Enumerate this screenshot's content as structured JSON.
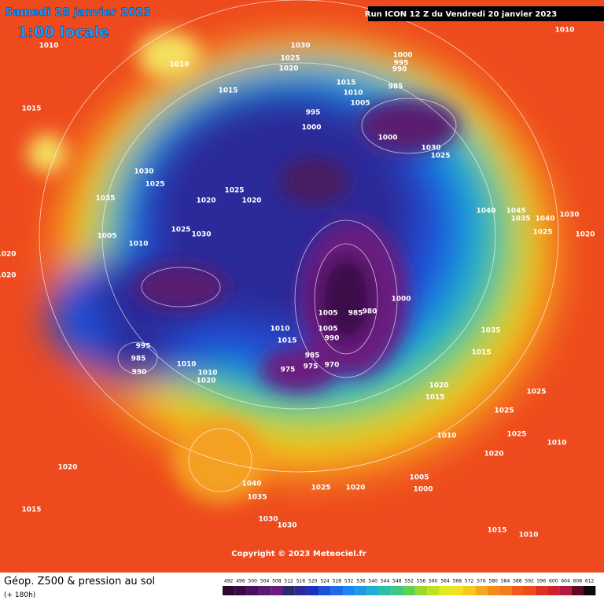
{
  "header": {
    "date": "Samedi 28 janvier 2023",
    "time": "1:00 locale",
    "run": "Run ICON 12 Z du Vendredi 20 janvier 2023"
  },
  "copyright": "Copyright © 2023 Meteociel.fr",
  "footer": {
    "title": "Géop. Z500 & pression au sol",
    "subtitle": "(+ 180h)"
  },
  "scale": {
    "labels": [
      "492",
      "496",
      "500",
      "504",
      "508",
      "512",
      "516",
      "520",
      "524",
      "528",
      "532",
      "536",
      "540",
      "544",
      "548",
      "552",
      "556",
      "560",
      "564",
      "568",
      "572",
      "576",
      "580",
      "584",
      "588",
      "592",
      "596",
      "600",
      "604",
      "608",
      "612"
    ]
  },
  "isobars": [
    "1010",
    "1030",
    "1025",
    "1020",
    "1010",
    "1015",
    "1000",
    "995",
    "990",
    "985",
    "1015",
    "1010",
    "1005",
    "995",
    "1000",
    "1000",
    "1030",
    "1025",
    "1030",
    "1025",
    "1035",
    "1020",
    "1025",
    "1030",
    "1025",
    "1005",
    "1010",
    "1020",
    "1040",
    "1045",
    "1040",
    "1035",
    "1030",
    "1025",
    "1020",
    "1020",
    "995",
    "985",
    "990",
    "1015",
    "1010",
    "1020",
    "1035",
    "1015",
    "1005",
    "985",
    "980",
    "1000",
    "1010",
    "1005",
    "990",
    "985",
    "975",
    "970",
    "975",
    "1020",
    "1015",
    "1010",
    "1005",
    "1000",
    "1040",
    "1035",
    "1030",
    "1030",
    "1025",
    "1020",
    "1015",
    "1015",
    "1010",
    "1025",
    "1025",
    "1025",
    "1020",
    "1015",
    "1010",
    "1010",
    "1020",
    "1020",
    "1010"
  ]
}
